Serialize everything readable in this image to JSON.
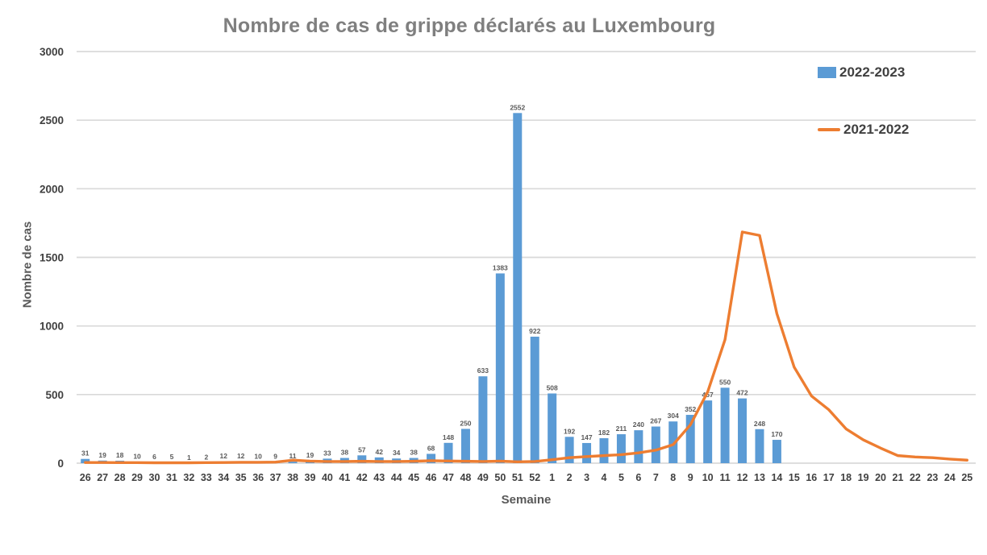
{
  "chart_data": {
    "type": "bar",
    "title": "Nombre de cas de grippe déclarés au Luxembourg",
    "xlabel": "Semaine",
    "ylabel": "Nombre de cas",
    "ylim": [
      0,
      3000
    ],
    "yticks": [
      0,
      500,
      1000,
      1500,
      2000,
      2500,
      3000
    ],
    "grid": true,
    "legend_position": "top-right",
    "categories": [
      "26",
      "27",
      "28",
      "29",
      "30",
      "31",
      "32",
      "33",
      "34",
      "35",
      "36",
      "37",
      "38",
      "39",
      "40",
      "41",
      "42",
      "43",
      "44",
      "45",
      "46",
      "47",
      "48",
      "49",
      "50",
      "51",
      "52",
      "1",
      "2",
      "3",
      "4",
      "5",
      "6",
      "7",
      "8",
      "9",
      "10",
      "11",
      "12",
      "13",
      "14",
      "15",
      "16",
      "17",
      "18",
      "19",
      "20",
      "21",
      "22",
      "23",
      "24",
      "25"
    ],
    "series": [
      {
        "name": "2022-2023",
        "type": "bar",
        "color": "#5B9BD5",
        "values": [
          31,
          19,
          18,
          10,
          6,
          5,
          1,
          2,
          12,
          12,
          10,
          9,
          11,
          19,
          33,
          38,
          57,
          42,
          34,
          38,
          68,
          148,
          250,
          633,
          1383,
          2552,
          922,
          508,
          192,
          147,
          182,
          211,
          240,
          267,
          304,
          352,
          457,
          550,
          472,
          248,
          170,
          null,
          null,
          null,
          null,
          null,
          null,
          null,
          null,
          null,
          null,
          null
        ]
      },
      {
        "name": "2021-2022",
        "type": "line",
        "color": "#ED7D31",
        "values": [
          5,
          5,
          4,
          4,
          3,
          3,
          3,
          4,
          5,
          6,
          6,
          8,
          22,
          15,
          12,
          12,
          14,
          12,
          12,
          14,
          18,
          16,
          14,
          12,
          15,
          10,
          12,
          25,
          40,
          48,
          55,
          62,
          75,
          95,
          135,
          280,
          520,
          900,
          1685,
          1660,
          1090,
          700,
          490,
          390,
          250,
          170,
          110,
          55,
          45,
          40,
          30,
          22
        ]
      }
    ],
    "colors": {
      "bar": "#5B9BD5",
      "line": "#ED7D31",
      "title": "#7f7f7f",
      "gridline": "#D9D9D9",
      "axis_tick": "#404040",
      "bar_label": "#595959",
      "axis_title": "#595959"
    }
  }
}
